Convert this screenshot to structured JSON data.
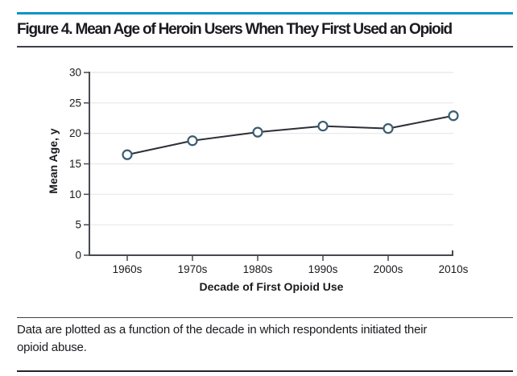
{
  "figure": {
    "title": "Figure 4. Mean Age of Heroin Users When They First Used an Opioid",
    "caption": "Data are plotted as a function of the decade in which respondents initiated their\nopioid abuse."
  },
  "colors": {
    "accent_rule": "#0e94c4",
    "rule_dark": "#3e4147",
    "rule_black": "#24242a",
    "text": "#1a1a1f",
    "axis": "#46494e",
    "grid": "#e7e7e7",
    "line": "#2c2f35",
    "marker_stroke": "#3a5c72",
    "marker_fill": "#ffffff"
  },
  "chart_data": {
    "type": "line",
    "categories": [
      "1960s",
      "1970s",
      "1980s",
      "1990s",
      "2000s",
      "2010s"
    ],
    "values": [
      16.5,
      18.8,
      20.2,
      21.2,
      20.8,
      22.9
    ],
    "title": "",
    "xlabel": "Decade of First Opioid Use",
    "ylabel": "Mean Age, y",
    "ylim": [
      0,
      30
    ],
    "yticks": [
      0,
      5,
      10,
      15,
      20,
      25,
      30
    ],
    "grid": true,
    "legend": "none",
    "marker": "open-circle"
  }
}
